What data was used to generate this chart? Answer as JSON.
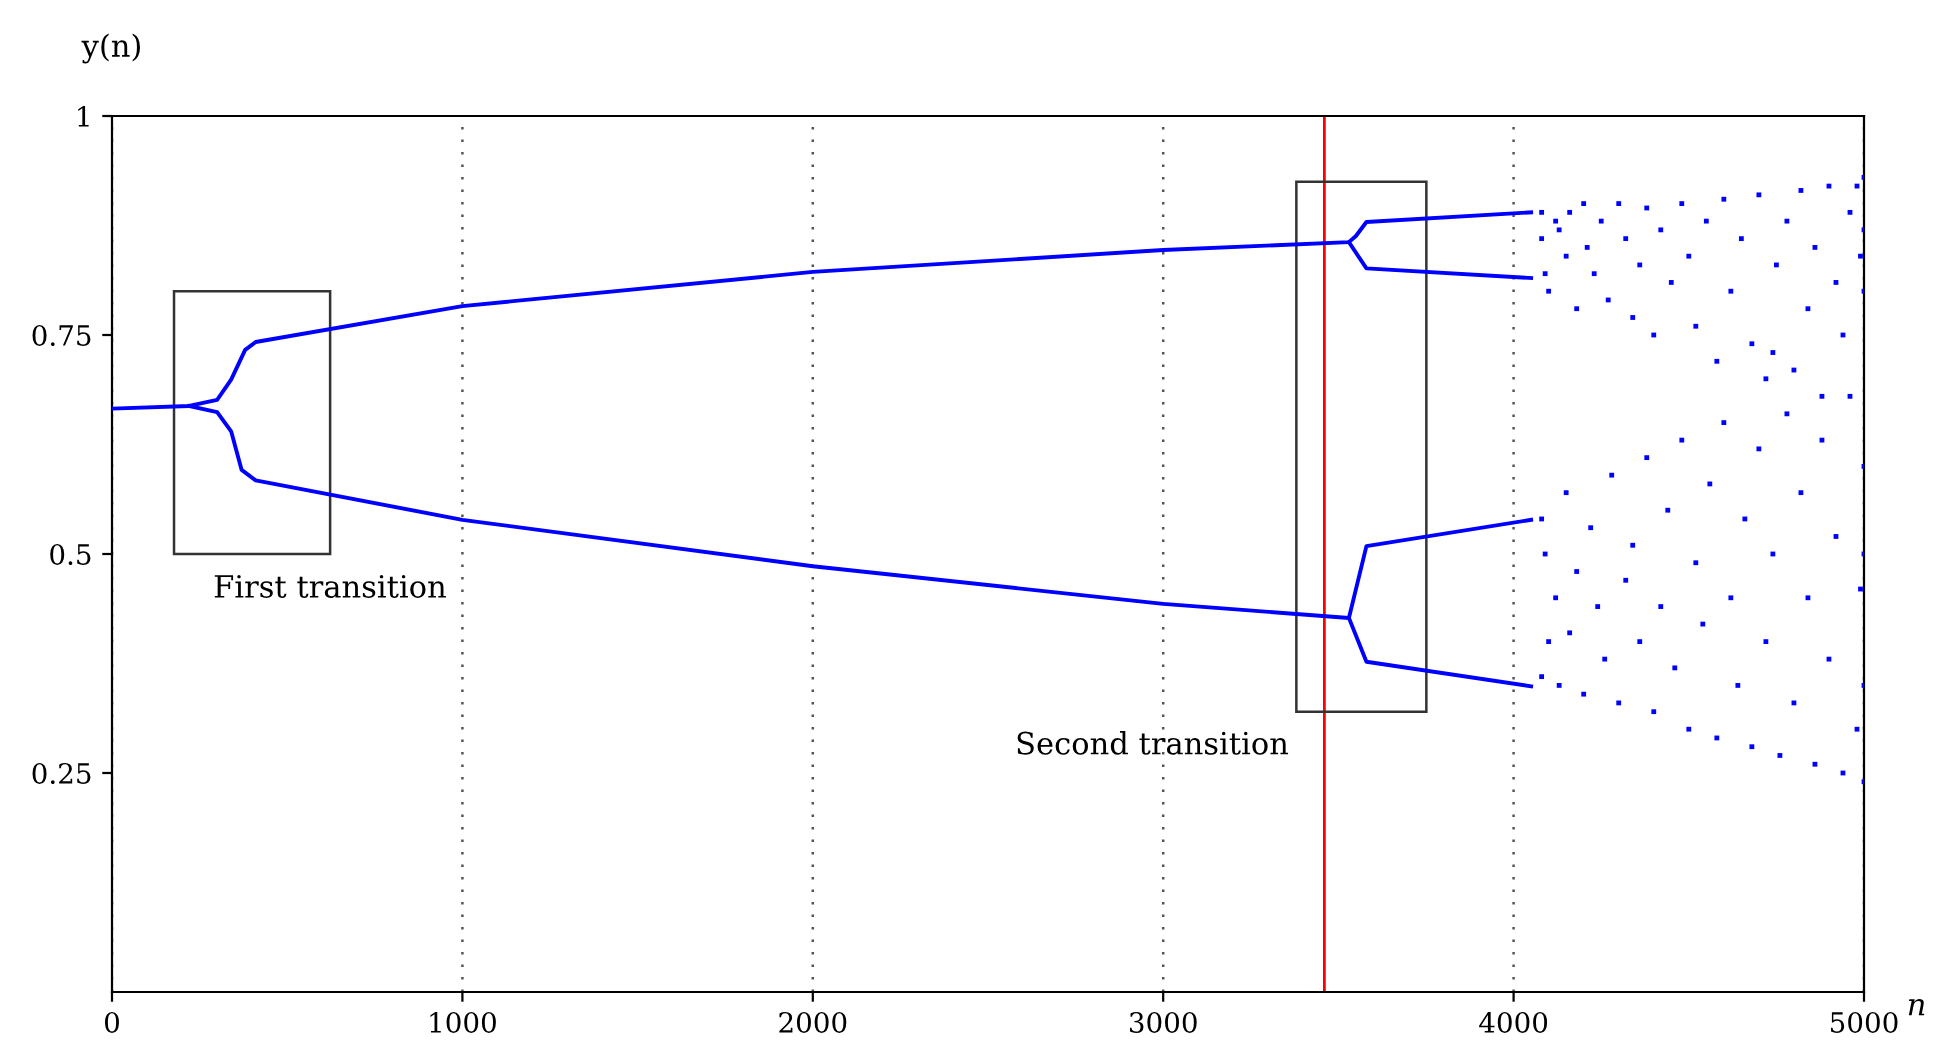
{
  "chart_data": {
    "type": "line",
    "xlabel": "n",
    "ylabel": "y(n)",
    "xlim": [
      0,
      5000
    ],
    "ylim": [
      0,
      1
    ],
    "xticks": [
      0,
      1000,
      2000,
      3000,
      4000,
      5000
    ],
    "yticks": [
      {
        "value": 0.25,
        "label": "0.25"
      },
      {
        "value": 0.5,
        "label": "0.5"
      },
      {
        "value": 0.75,
        "label": "0.75"
      },
      1
    ],
    "grid": "x",
    "ref_lines": [
      {
        "axis": "x",
        "value": 3460,
        "color": "#ff0000"
      }
    ],
    "annotations": [
      "First transition",
      "Second transition"
    ],
    "series": [
      {
        "color": "#0000ff",
        "x": [
          0,
          220,
          300,
          340,
          380,
          410,
          1000,
          2000,
          3000,
          3530,
          3550,
          3580,
          4050
        ],
        "values": [
          0.666,
          0.669,
          0.676,
          0.699,
          0.733,
          0.742,
          0.783,
          0.822,
          0.847,
          0.856,
          0.863,
          0.879,
          0.89
        ]
      },
      {
        "color": "#0000ff",
        "x": [
          3530,
          3580,
          4050
        ],
        "values": [
          0.856,
          0.826,
          0.815
        ]
      },
      {
        "color": "#0000ff",
        "x": [
          220,
          300,
          340,
          370,
          410,
          1000,
          2000,
          3000,
          3530,
          3580,
          4050
        ],
        "values": [
          0.669,
          0.662,
          0.64,
          0.596,
          0.584,
          0.539,
          0.486,
          0.443,
          0.427,
          0.509,
          0.539
        ]
      },
      {
        "color": "#0000ff",
        "x": [
          3530,
          3580,
          4050
        ],
        "values": [
          0.427,
          0.377,
          0.349
        ]
      },
      {
        "type": "scatter",
        "color": "#0000ff",
        "x": [
          4080,
          4080,
          4090,
          4100,
          4120,
          4130,
          4150,
          4160,
          4180,
          4200,
          4210,
          4230,
          4250,
          4270,
          4300,
          4320,
          4340,
          4360,
          4380,
          4400,
          4420,
          4450,
          4480,
          4500,
          4520,
          4550,
          4580,
          4600,
          4620,
          4650,
          4680,
          4700,
          4720,
          4740,
          4750,
          4780,
          4800,
          4820,
          4840,
          4860,
          4880,
          4900,
          4920,
          4940,
          4960,
          4980,
          4990,
          5000,
          5000,
          5000,
          4080,
          4080,
          4090,
          4100,
          4120,
          4130,
          4150,
          4160,
          4180,
          4200,
          4220,
          4240,
          4260,
          4280,
          4300,
          4320,
          4340,
          4360,
          4380,
          4400,
          4420,
          4440,
          4460,
          4480,
          4500,
          4520,
          4540,
          4560,
          4580,
          4600,
          4620,
          4640,
          4660,
          4680,
          4700,
          4720,
          4740,
          4760,
          4780,
          4800,
          4820,
          4840,
          4860,
          4880,
          4900,
          4920,
          4940,
          4960,
          4980,
          4990,
          5000,
          5000,
          5000,
          5000
        ],
        "values": [
          0.89,
          0.86,
          0.82,
          0.8,
          0.88,
          0.87,
          0.84,
          0.89,
          0.78,
          0.9,
          0.85,
          0.82,
          0.88,
          0.79,
          0.9,
          0.86,
          0.77,
          0.83,
          0.895,
          0.75,
          0.87,
          0.81,
          0.9,
          0.84,
          0.76,
          0.88,
          0.72,
          0.905,
          0.8,
          0.86,
          0.74,
          0.91,
          0.7,
          0.73,
          0.83,
          0.88,
          0.71,
          0.915,
          0.78,
          0.85,
          0.68,
          0.92,
          0.81,
          0.75,
          0.89,
          0.92,
          0.84,
          0.93,
          0.8,
          0.87,
          0.54,
          0.36,
          0.5,
          0.4,
          0.45,
          0.35,
          0.57,
          0.41,
          0.48,
          0.34,
          0.53,
          0.44,
          0.38,
          0.59,
          0.33,
          0.47,
          0.51,
          0.4,
          0.61,
          0.32,
          0.44,
          0.55,
          0.37,
          0.63,
          0.3,
          0.49,
          0.42,
          0.58,
          0.29,
          0.65,
          0.45,
          0.35,
          0.54,
          0.28,
          0.62,
          0.4,
          0.5,
          0.27,
          0.66,
          0.33,
          0.57,
          0.45,
          0.26,
          0.63,
          0.38,
          0.52,
          0.25,
          0.68,
          0.3,
          0.46,
          0.6,
          0.24,
          0.5,
          0.35
        ]
      }
    ]
  }
}
